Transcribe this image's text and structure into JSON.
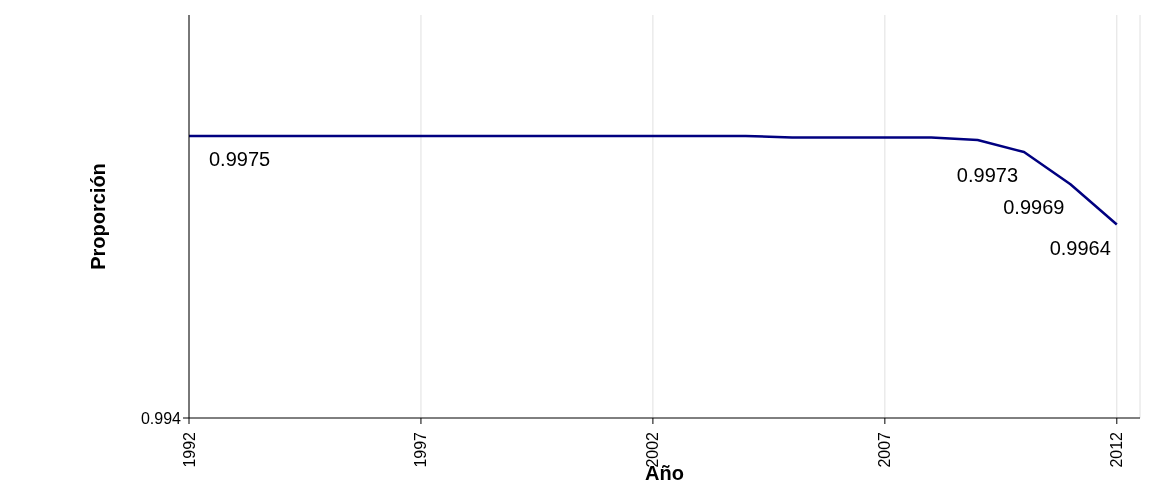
{
  "chart_data": {
    "type": "line",
    "xlabel": "Año",
    "ylabel": "Proporción",
    "x": [
      1992,
      1993,
      1994,
      1995,
      1996,
      1997,
      1998,
      1999,
      2000,
      2001,
      2002,
      2003,
      2004,
      2005,
      2006,
      2007,
      2008,
      2009,
      2010,
      2011,
      2012
    ],
    "series": [
      {
        "color": "#000080",
        "values": [
          0.9975,
          0.9975,
          0.9975,
          0.9975,
          0.9975,
          0.9975,
          0.9975,
          0.9975,
          0.9975,
          0.9975,
          0.9975,
          0.9975,
          0.9975,
          0.99748,
          0.99748,
          0.99748,
          0.99748,
          0.99745,
          0.9973,
          0.9969,
          0.9964
        ],
        "value_labels": [
          "0.9975",
          null,
          null,
          null,
          null,
          null,
          null,
          null,
          null,
          null,
          null,
          null,
          null,
          null,
          null,
          null,
          null,
          null,
          "0.9973",
          "0.9969",
          "0.9964"
        ]
      }
    ],
    "xlim": [
      1992,
      2012.5
    ],
    "xticks": [
      1992,
      1997,
      2002,
      2007,
      2012
    ],
    "ylim": [
      0.994,
      0.999
    ],
    "annotations": [
      "0.994"
    ],
    "grid": "x",
    "marker": "none",
    "line_style": "solid",
    "legend": false
  }
}
